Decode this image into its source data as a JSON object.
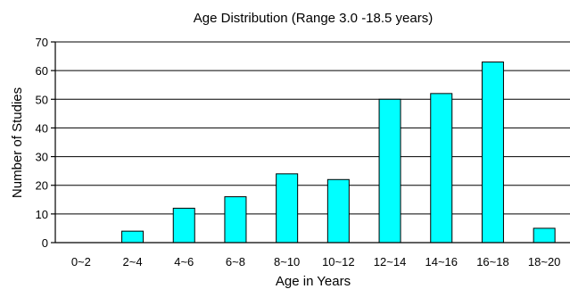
{
  "chart_data": {
    "type": "bar",
    "title": "Age Distribution (Range 3.0 -18.5 years)",
    "xlabel": "Age in Years",
    "ylabel": "Number of Studies",
    "categories": [
      "0~2",
      "2~4",
      "4~6",
      "6~8",
      "8~10",
      "10~12",
      "12~14",
      "14~16",
      "16~18",
      "18~20"
    ],
    "values": [
      0,
      4,
      12,
      16,
      24,
      22,
      50,
      52,
      63,
      5
    ],
    "ylim": [
      0,
      70
    ],
    "yticks": [
      "0",
      "10",
      "20",
      "30",
      "40",
      "50",
      "60",
      "70"
    ],
    "grid": true,
    "colors": {
      "bar": "#00ffff",
      "outline": "#000000"
    }
  }
}
